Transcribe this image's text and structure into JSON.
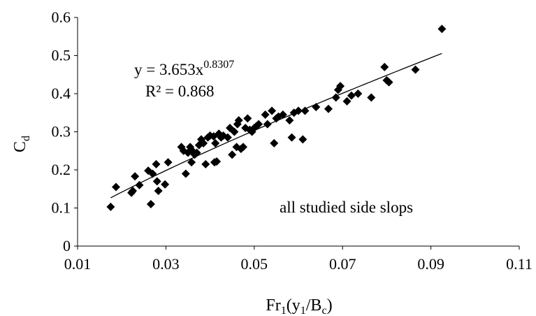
{
  "chart_data": {
    "type": "scatter",
    "xlabel": {
      "main": "Fr",
      "sub1": "1",
      "open": "(y",
      "sub2": "1",
      "mid": "/B",
      "sub3": "c",
      "close": ")"
    },
    "ylabel": {
      "main": "C",
      "sub": "d"
    },
    "xlim": [
      0.01,
      0.11
    ],
    "ylim": [
      0,
      0.6
    ],
    "xticks": [
      "0.01",
      "0.03",
      "0.05",
      "0.07",
      "0.09",
      "0.11"
    ],
    "yticks": [
      "0",
      "0.1",
      "0.2",
      "0.3",
      "0.4",
      "0.5",
      "0.6"
    ],
    "grid": false,
    "marker_color": "#000000",
    "trendline": {
      "type": "power",
      "a": 3.653,
      "b": 0.8307,
      "x_range": [
        0.0175,
        0.0925
      ],
      "equation_base": "y = 3.653x",
      "equation_exp": "0.8307",
      "r2_text": "R² = 0.868"
    },
    "annotation": "all studied side slops",
    "points": [
      [
        0.0175,
        0.103
      ],
      [
        0.0187,
        0.155
      ],
      [
        0.0222,
        0.14
      ],
      [
        0.0225,
        0.145
      ],
      [
        0.023,
        0.183
      ],
      [
        0.024,
        0.16
      ],
      [
        0.026,
        0.198
      ],
      [
        0.0266,
        0.11
      ],
      [
        0.027,
        0.19
      ],
      [
        0.0278,
        0.215
      ],
      [
        0.028,
        0.17
      ],
      [
        0.0283,
        0.145
      ],
      [
        0.0298,
        0.162
      ],
      [
        0.0305,
        0.22
      ],
      [
        0.0335,
        0.26
      ],
      [
        0.034,
        0.25
      ],
      [
        0.0345,
        0.19
      ],
      [
        0.035,
        0.245
      ],
      [
        0.0355,
        0.26
      ],
      [
        0.0358,
        0.22
      ],
      [
        0.036,
        0.25
      ],
      [
        0.0365,
        0.24
      ],
      [
        0.037,
        0.245
      ],
      [
        0.0375,
        0.265
      ],
      [
        0.038,
        0.28
      ],
      [
        0.0385,
        0.27
      ],
      [
        0.039,
        0.215
      ],
      [
        0.0395,
        0.285
      ],
      [
        0.04,
        0.29
      ],
      [
        0.0408,
        0.288
      ],
      [
        0.041,
        0.22
      ],
      [
        0.0412,
        0.27
      ],
      [
        0.0415,
        0.222
      ],
      [
        0.042,
        0.295
      ],
      [
        0.0425,
        0.285
      ],
      [
        0.043,
        0.29
      ],
      [
        0.044,
        0.285
      ],
      [
        0.0445,
        0.31
      ],
      [
        0.045,
        0.24
      ],
      [
        0.0455,
        0.3
      ],
      [
        0.046,
        0.26
      ],
      [
        0.0462,
        0.32
      ],
      [
        0.0465,
        0.33
      ],
      [
        0.047,
        0.255
      ],
      [
        0.0475,
        0.26
      ],
      [
        0.048,
        0.31
      ],
      [
        0.0485,
        0.335
      ],
      [
        0.049,
        0.305
      ],
      [
        0.0495,
        0.3
      ],
      [
        0.05,
        0.31
      ],
      [
        0.0505,
        0.315
      ],
      [
        0.051,
        0.32
      ],
      [
        0.0525,
        0.345
      ],
      [
        0.053,
        0.32
      ],
      [
        0.054,
        0.355
      ],
      [
        0.0545,
        0.27
      ],
      [
        0.055,
        0.335
      ],
      [
        0.0555,
        0.34
      ],
      [
        0.0565,
        0.345
      ],
      [
        0.058,
        0.33
      ],
      [
        0.0585,
        0.285
      ],
      [
        0.059,
        0.35
      ],
      [
        0.06,
        0.355
      ],
      [
        0.061,
        0.28
      ],
      [
        0.0615,
        0.355
      ],
      [
        0.064,
        0.365
      ],
      [
        0.0668,
        0.36
      ],
      [
        0.0685,
        0.39
      ],
      [
        0.069,
        0.41
      ],
      [
        0.0695,
        0.42
      ],
      [
        0.071,
        0.38
      ],
      [
        0.072,
        0.395
      ],
      [
        0.0735,
        0.4
      ],
      [
        0.0765,
        0.39
      ],
      [
        0.0795,
        0.47
      ],
      [
        0.08,
        0.435
      ],
      [
        0.0805,
        0.43
      ],
      [
        0.0865,
        0.463
      ],
      [
        0.0925,
        0.57
      ]
    ]
  }
}
